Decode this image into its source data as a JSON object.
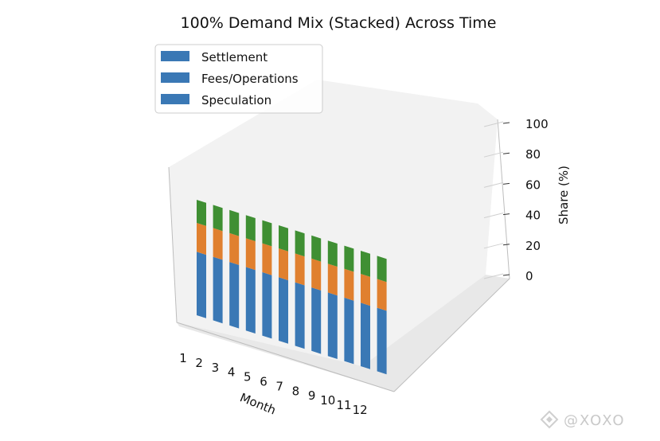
{
  "chart_data": {
    "type": "bar3d-stacked",
    "title": "100% Demand Mix (Stacked) Across Time",
    "xlabel": "Month",
    "ylabel": "",
    "zlabel": "Share (%)",
    "categories": [
      "1",
      "2",
      "3",
      "4",
      "5",
      "6",
      "7",
      "8",
      "9",
      "10",
      "11",
      "12"
    ],
    "zticks": [
      "0",
      "20",
      "40",
      "60",
      "80",
      "100"
    ],
    "zlim": [
      0,
      100
    ],
    "legend_position": "upper-left",
    "series": [
      {
        "name": "Speculation",
        "color": "#3a78b5",
        "values": [
          55,
          55,
          55,
          55,
          55,
          55,
          55,
          55,
          55,
          55,
          55,
          55
        ]
      },
      {
        "name": "Fees/Operations",
        "color": "#e0802f",
        "values": [
          25,
          25,
          25,
          25,
          25,
          25,
          25,
          25,
          25,
          25,
          25,
          25
        ]
      },
      {
        "name": "Settlement",
        "color": "#3f8f33",
        "values": [
          20,
          20,
          20,
          20,
          20,
          20,
          20,
          20,
          20,
          20,
          20,
          20
        ]
      }
    ],
    "legend": [
      {
        "label": "Settlement",
        "color": "#3a78b5"
      },
      {
        "label": "Fees/Operations",
        "color": "#3a78b5"
      },
      {
        "label": "Speculation",
        "color": "#3a78b5"
      }
    ]
  },
  "watermark": "@XOXO"
}
